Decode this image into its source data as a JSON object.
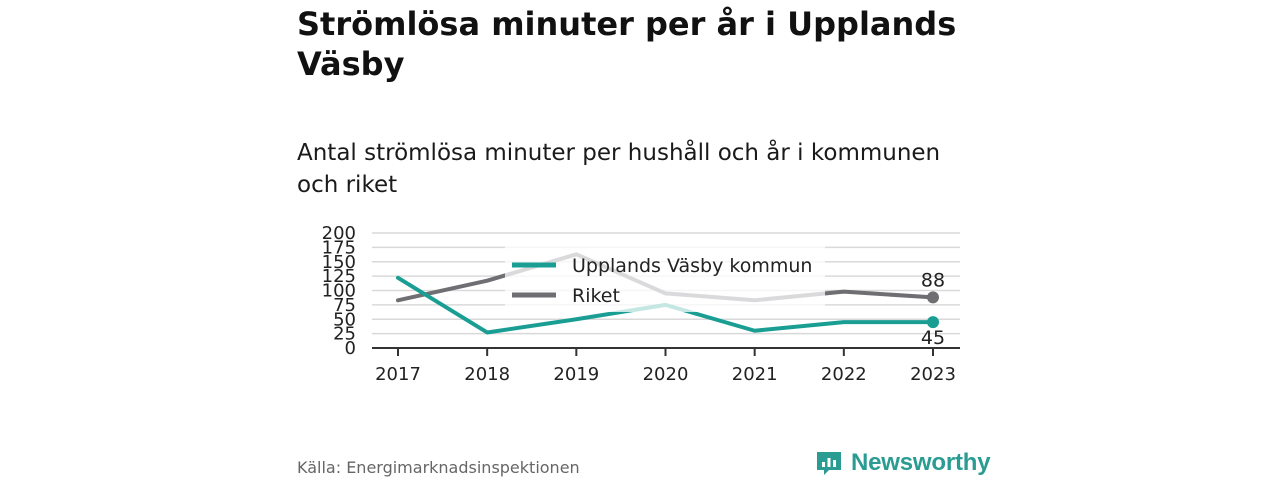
{
  "title": "Strömlösa minuter per år i Upplands Väsby",
  "subtitle": "Antal strömlösa minuter per hushåll och år i kommunen och riket",
  "source": "Källa: Energimarknadsinspektionen",
  "brand": "Newsworthy",
  "colors": {
    "kommun": "#1a9e94",
    "riket": "#6e6e73",
    "grid": "#d9d9d9",
    "axis": "#333333",
    "brand": "#2b9c92"
  },
  "chart_data": {
    "type": "line",
    "categories": [
      "2017",
      "2018",
      "2019",
      "2020",
      "2021",
      "2022",
      "2023"
    ],
    "ylim": [
      0,
      200
    ],
    "yticks": [
      0,
      25,
      50,
      75,
      100,
      125,
      150,
      175,
      200
    ],
    "grid": true,
    "legend_position": "top-center",
    "series": [
      {
        "name": "Upplands Väsby kommun",
        "color": "#1a9e94",
        "values": [
          122,
          27,
          50,
          75,
          30,
          45,
          45
        ],
        "end_label": "45"
      },
      {
        "name": "Riket",
        "color": "#6e6e73",
        "values": [
          83,
          117,
          163,
          95,
          83,
          98,
          88
        ],
        "end_label": "88"
      }
    ]
  }
}
